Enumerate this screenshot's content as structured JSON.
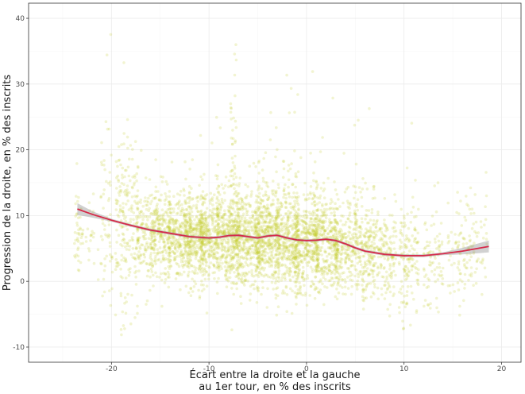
{
  "chart_data": {
    "type": "scatter",
    "title": "",
    "xlabel_lines": [
      "Écart entre la droite et la gauche",
      "au 1er tour, en % des inscrits"
    ],
    "ylabel": "Progression de la droite, en % des inscrits",
    "xlim": [
      -28.5,
      22
    ],
    "ylim": [
      -12.3,
      42.3
    ],
    "x_ticks": [
      -20,
      -10,
      0,
      10,
      20
    ],
    "y_ticks": [
      -10,
      0,
      10,
      20,
      30,
      40
    ],
    "grid": true,
    "legend": "none",
    "colors": {
      "points": "#c2cc2e",
      "smooth_line": "#d62a4a",
      "confidence_band": "#999999",
      "grid_major": "#ebebeb",
      "grid_minor": "#f5f5f5",
      "panel_border": "#333333"
    },
    "point_density_hint": "dense cloud of several thousand semi-transparent points concentrated between x=-20 and x=19, mostly y from 0 to 12",
    "series": [
      {
        "role": "trend",
        "x": [
          -23.5,
          -22,
          -20,
          -18,
          -16,
          -14,
          -12,
          -10,
          -9,
          -8,
          -7,
          -6,
          -5,
          -4,
          -3,
          -2,
          -1,
          0,
          1,
          2,
          3,
          4,
          5,
          6,
          8,
          10,
          12,
          14,
          16,
          18.7
        ],
        "y": [
          11.0,
          10.2,
          9.3,
          8.5,
          7.8,
          7.3,
          6.8,
          6.6,
          6.7,
          6.95,
          7.0,
          6.8,
          6.6,
          6.9,
          7.0,
          6.6,
          6.3,
          6.2,
          6.25,
          6.4,
          6.2,
          5.7,
          5.1,
          4.6,
          4.1,
          3.9,
          3.9,
          4.2,
          4.6,
          5.3
        ]
      }
    ],
    "clusters": [
      {
        "x": -23.5,
        "spread": 0.3,
        "y_mean": 8.0,
        "y_sd": 4.0,
        "n": 25
      },
      {
        "x": -22.5,
        "spread": 1.2,
        "y_mean": 7.5,
        "y_sd": 3.2,
        "n": 40
      },
      {
        "x": -20.5,
        "spread": 0.6,
        "y_mean": 9.0,
        "y_sd": 6.0,
        "n": 60
      },
      {
        "x": -19,
        "spread": 0.6,
        "y_mean": 8.5,
        "y_sd": 6.5,
        "n": 110
      },
      {
        "x": -17.8,
        "spread": 0.6,
        "y_mean": 8.0,
        "y_sd": 6.0,
        "n": 90
      },
      {
        "x": -16.5,
        "spread": 1.0,
        "y_mean": 7.0,
        "y_sd": 3.5,
        "n": 160
      },
      {
        "x": -15,
        "spread": 1.0,
        "y_mean": 7.0,
        "y_sd": 3.2,
        "n": 220
      },
      {
        "x": -13,
        "spread": 1.2,
        "y_mean": 6.5,
        "y_sd": 3.2,
        "n": 300
      },
      {
        "x": -11.5,
        "spread": 1.0,
        "y_mean": 6.8,
        "y_sd": 3.5,
        "n": 280
      },
      {
        "x": -10,
        "spread": 1.0,
        "y_mean": 6.5,
        "y_sd": 3.6,
        "n": 320
      },
      {
        "x": -8,
        "spread": 1.2,
        "y_mean": 6.5,
        "y_sd": 3.2,
        "n": 380
      },
      {
        "x": -7.5,
        "spread": 0.3,
        "y_mean": 15.0,
        "y_sd": 8.0,
        "n": 60
      },
      {
        "x": -6,
        "spread": 1.2,
        "y_mean": 6.5,
        "y_sd": 3.5,
        "n": 380
      },
      {
        "x": -4,
        "spread": 1.2,
        "y_mean": 6.6,
        "y_sd": 3.8,
        "n": 420
      },
      {
        "x": -2,
        "spread": 1.2,
        "y_mean": 6.2,
        "y_sd": 3.8,
        "n": 400
      },
      {
        "x": 0,
        "spread": 1.2,
        "y_mean": 6.0,
        "y_sd": 3.8,
        "n": 380
      },
      {
        "x": 2,
        "spread": 1.2,
        "y_mean": 6.0,
        "y_sd": 3.6,
        "n": 330
      },
      {
        "x": 4,
        "spread": 1.2,
        "y_mean": 5.3,
        "y_sd": 3.6,
        "n": 260
      },
      {
        "x": 6,
        "spread": 1.0,
        "y_mean": 4.5,
        "y_sd": 3.8,
        "n": 200
      },
      {
        "x": 8,
        "spread": 1.2,
        "y_mean": 4.0,
        "y_sd": 3.5,
        "n": 170
      },
      {
        "x": 10.5,
        "spread": 1.0,
        "y_mean": 3.5,
        "y_sd": 3.8,
        "n": 140
      },
      {
        "x": 13,
        "spread": 1.0,
        "y_mean": 3.2,
        "y_sd": 3.6,
        "n": 80
      },
      {
        "x": 15.5,
        "spread": 1.0,
        "y_mean": 4.5,
        "y_sd": 4.0,
        "n": 70
      },
      {
        "x": 17.5,
        "spread": 1.0,
        "y_mean": 5.0,
        "y_sd": 3.5,
        "n": 60
      }
    ]
  }
}
